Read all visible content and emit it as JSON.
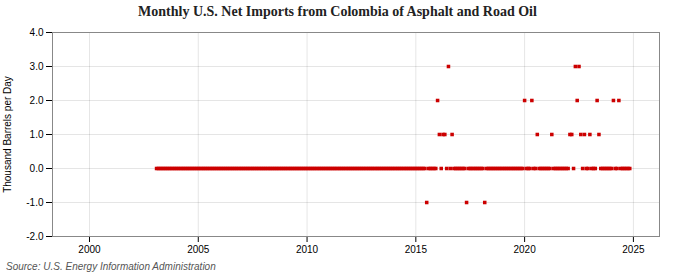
{
  "chart_data": {
    "type": "scatter",
    "title": "Monthly U.S. Net Imports from Colombia of Asphalt and Road Oil",
    "ylabel": "Thousand Barrels per Day",
    "source": "Source: U.S. Energy Information Administration",
    "color": "#cc0000",
    "marker": "square",
    "grid": true,
    "xlim": [
      1998.3,
      2026.2
    ],
    "xticks": [
      2000,
      2005,
      2010,
      2015,
      2020,
      2025
    ],
    "ylim": [
      -2.0,
      4.0
    ],
    "yticks": [
      {
        "value": -2.0,
        "label": "-2.0"
      },
      {
        "value": -1.0,
        "label": "-1.0"
      },
      {
        "value": 0.0,
        "label": "0.0"
      },
      {
        "value": 1.0,
        "label": "1.0"
      },
      {
        "value": 2.0,
        "label": "2.0"
      },
      {
        "value": 3.0,
        "label": "3.0"
      },
      {
        "value": 4.0,
        "label": "4.0"
      }
    ],
    "x": [
      2003.083,
      2003.167,
      2003.25,
      2003.333,
      2003.417,
      2003.5,
      2003.583,
      2003.667,
      2003.75,
      2003.833,
      2003.917,
      2004.0,
      2004.083,
      2004.167,
      2004.25,
      2004.333,
      2004.417,
      2004.5,
      2004.583,
      2004.667,
      2004.75,
      2004.833,
      2004.917,
      2005.0,
      2005.083,
      2005.167,
      2005.25,
      2005.333,
      2005.417,
      2005.5,
      2005.583,
      2005.667,
      2005.75,
      2005.833,
      2005.917,
      2006.0,
      2006.083,
      2006.167,
      2006.25,
      2006.333,
      2006.417,
      2006.5,
      2006.583,
      2006.667,
      2006.75,
      2006.833,
      2006.917,
      2007.0,
      2007.083,
      2007.167,
      2007.25,
      2007.333,
      2007.417,
      2007.5,
      2007.583,
      2007.667,
      2007.75,
      2007.833,
      2007.917,
      2008.0,
      2008.083,
      2008.167,
      2008.25,
      2008.333,
      2008.417,
      2008.5,
      2008.583,
      2008.667,
      2008.75,
      2008.833,
      2008.917,
      2009.0,
      2009.083,
      2009.167,
      2009.25,
      2009.333,
      2009.417,
      2009.5,
      2009.583,
      2009.667,
      2009.75,
      2009.833,
      2009.917,
      2010.0,
      2010.083,
      2010.167,
      2010.25,
      2010.333,
      2010.417,
      2010.5,
      2010.583,
      2010.667,
      2010.75,
      2010.833,
      2010.917,
      2011.0,
      2011.083,
      2011.167,
      2011.25,
      2011.333,
      2011.417,
      2011.5,
      2011.583,
      2011.667,
      2011.75,
      2011.833,
      2011.917,
      2012.0,
      2012.083,
      2012.167,
      2012.25,
      2012.333,
      2012.417,
      2012.5,
      2012.583,
      2012.667,
      2012.75,
      2012.833,
      2012.917,
      2013.0,
      2013.083,
      2013.167,
      2013.25,
      2013.333,
      2013.417,
      2013.5,
      2013.583,
      2013.667,
      2013.75,
      2013.833,
      2013.917,
      2014.0,
      2014.083,
      2014.167,
      2014.25,
      2014.333,
      2014.417,
      2014.5,
      2014.583,
      2014.667,
      2014.75,
      2014.833,
      2014.917,
      2015.0,
      2015.083,
      2015.167,
      2015.25,
      2015.333,
      2015.417,
      2015.5,
      2015.583,
      2015.667,
      2015.75,
      2015.833,
      2015.917,
      2016.0,
      2016.083,
      2016.167,
      2016.25,
      2016.333,
      2016.417,
      2016.5,
      2016.583,
      2016.667,
      2016.75,
      2016.833,
      2016.917,
      2017.0,
      2017.083,
      2017.167,
      2017.25,
      2017.333,
      2017.417,
      2017.5,
      2017.583,
      2017.667,
      2017.75,
      2017.833,
      2017.917,
      2018.0,
      2018.083,
      2018.167,
      2018.25,
      2018.333,
      2018.417,
      2018.5,
      2018.583,
      2018.667,
      2018.75,
      2018.833,
      2018.917,
      2019.0,
      2019.083,
      2019.167,
      2019.25,
      2019.333,
      2019.417,
      2019.5,
      2019.583,
      2019.667,
      2019.75,
      2019.833,
      2019.917,
      2020.0,
      2020.083,
      2020.167,
      2020.25,
      2020.333,
      2020.417,
      2020.5,
      2020.583,
      2020.667,
      2020.75,
      2020.833,
      2020.917,
      2021.0,
      2021.083,
      2021.167,
      2021.25,
      2021.333,
      2021.417,
      2021.5,
      2021.583,
      2021.667,
      2021.75,
      2021.833,
      2021.917,
      2022.0,
      2022.083,
      2022.167,
      2022.25,
      2022.333,
      2022.417,
      2022.5,
      2022.583,
      2022.667,
      2022.75,
      2022.833,
      2022.917,
      2023.0,
      2023.083,
      2023.167,
      2023.25,
      2023.333,
      2023.417,
      2023.5,
      2023.583,
      2023.667,
      2023.75,
      2023.833,
      2023.917,
      2024.0,
      2024.083,
      2024.167,
      2024.25,
      2024.333,
      2024.417,
      2024.5,
      2024.583,
      2024.667,
      2024.75,
      2024.833
    ],
    "values": [
      0,
      0,
      0,
      0,
      0,
      0,
      0,
      0,
      0,
      0,
      0,
      0,
      0,
      0,
      0,
      0,
      0,
      0,
      0,
      0,
      0,
      0,
      0,
      0,
      0,
      0,
      0,
      0,
      0,
      0,
      0,
      0,
      0,
      0,
      0,
      0,
      0,
      0,
      0,
      0,
      0,
      0,
      0,
      0,
      0,
      0,
      0,
      0,
      0,
      0,
      0,
      0,
      0,
      0,
      0,
      0,
      0,
      0,
      0,
      0,
      0,
      0,
      0,
      0,
      0,
      0,
      0,
      0,
      0,
      0,
      0,
      0,
      0,
      0,
      0,
      0,
      0,
      0,
      0,
      0,
      0,
      0,
      0,
      0,
      0,
      0,
      0,
      0,
      0,
      0,
      0,
      0,
      0,
      0,
      0,
      0,
      0,
      0,
      0,
      0,
      0,
      0,
      0,
      0,
      0,
      0,
      0,
      0,
      0,
      0,
      0,
      0,
      0,
      0,
      0,
      0,
      0,
      0,
      0,
      0,
      0,
      0,
      0,
      0,
      0,
      0,
      0,
      0,
      0,
      0,
      0,
      0,
      0,
      0,
      0,
      0,
      0,
      0,
      0,
      0,
      0,
      0,
      0,
      0,
      0,
      0,
      0,
      0,
      0,
      -1.0,
      0,
      0,
      0,
      0,
      0,
      2.0,
      1.0,
      0,
      1.0,
      1.0,
      0,
      3.0,
      0,
      1.0,
      0,
      0,
      0,
      0,
      0,
      0,
      0,
      -1.0,
      0,
      0,
      0,
      0,
      0,
      0,
      0,
      0,
      0,
      -1.0,
      0,
      0,
      0,
      0,
      0,
      0,
      0,
      0,
      0,
      0,
      0,
      0,
      0,
      0,
      0,
      0,
      0,
      0,
      0,
      0,
      0,
      2.0,
      0,
      0,
      0,
      2.0,
      0,
      0,
      1.0,
      0,
      0,
      0,
      0,
      0,
      0,
      0,
      1.0,
      0,
      0,
      0,
      0,
      0,
      0,
      0,
      0,
      0,
      1.0,
      1.0,
      0,
      3.0,
      2.0,
      3.0,
      1.0,
      0,
      1.0,
      0,
      0,
      1.0,
      0,
      0,
      0,
      2.0,
      1.0,
      0,
      0,
      0,
      0,
      0,
      0,
      0,
      2.0,
      0,
      0,
      2.0,
      0,
      0,
      0,
      0,
      0,
      0
    ]
  }
}
